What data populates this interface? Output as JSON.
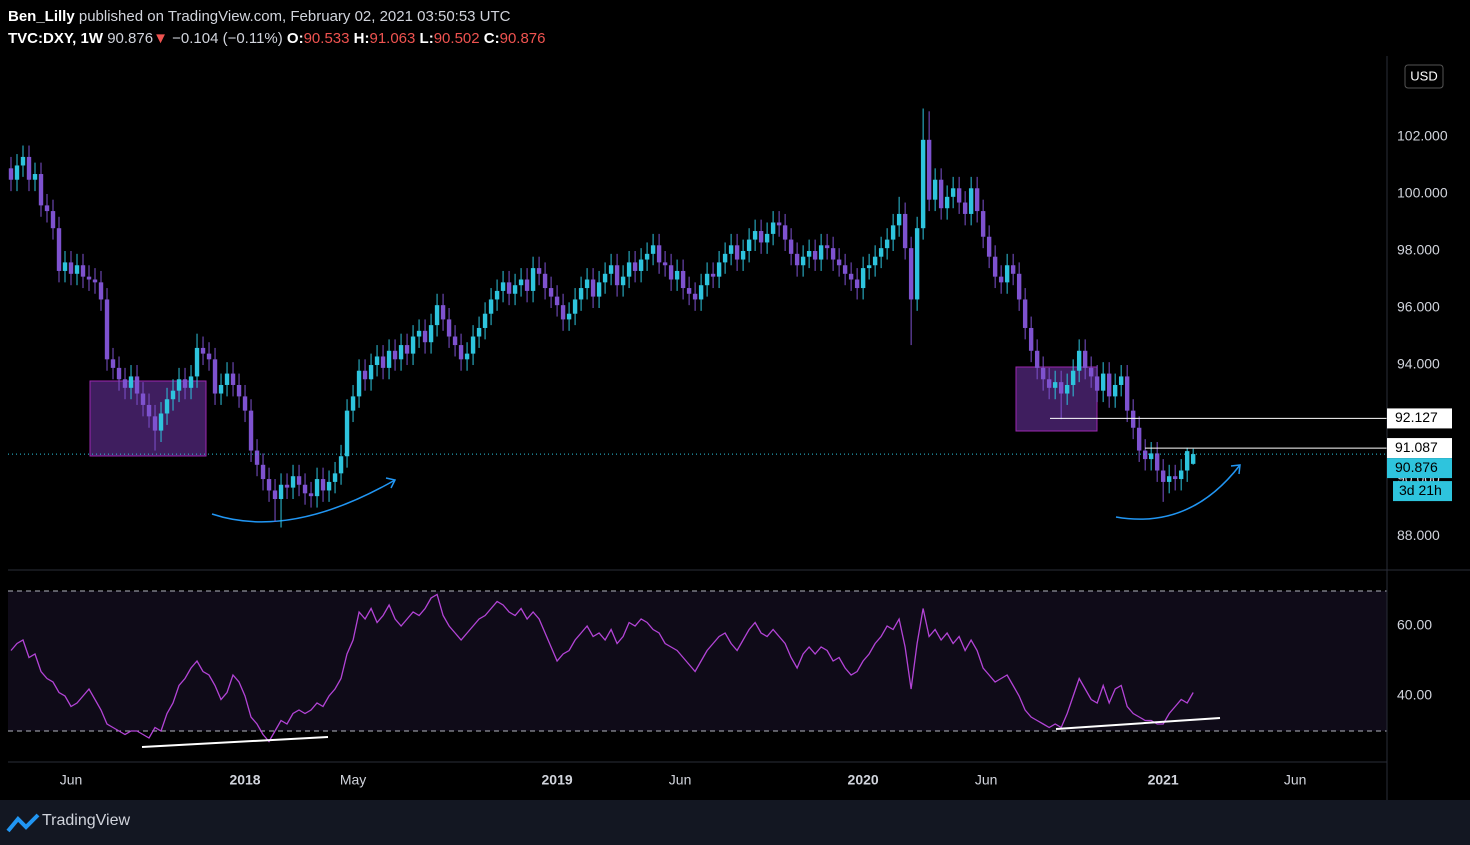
{
  "header": {
    "author": "Ben_Lilly",
    "published": "published on TradingView.com, February 02, 2021 03:50:53 UTC",
    "symbol": "TVC:DXY, 1W",
    "change": "−0.104",
    "change_pct": "(−0.11%)",
    "o_label": "O:",
    "h_label": "H:",
    "l_label": "L:",
    "c_label": "C:"
  },
  "chart_data": [
    {
      "type": "candlestick",
      "currency": "USD",
      "up_color": "#2ec4dd",
      "down_color": "#7e52cf",
      "open": [
        100.9,
        100.5,
        101.0,
        101.3,
        100.5,
        100.7,
        99.6,
        99.4,
        98.8,
        97.3,
        97.6,
        97.2,
        97.5,
        97.1,
        97.0,
        96.9,
        96.3,
        94.2,
        93.9,
        93.5,
        93.2,
        93.6,
        93.0,
        92.6,
        92.2,
        91.7,
        92.3,
        92.8,
        93.1,
        93.5,
        93.2,
        93.6,
        94.6,
        94.4,
        94.2,
        93.0,
        93.3,
        93.7,
        93.3,
        92.9,
        92.4,
        91.0,
        90.5,
        90.0,
        89.6,
        89.3,
        89.8,
        89.7,
        90.1,
        89.8,
        89.5,
        89.4,
        90.0,
        89.6,
        89.9,
        90.2,
        90.8,
        92.4,
        92.9,
        93.8,
        93.5,
        94.0,
        94.3,
        93.9,
        94.5,
        94.2,
        94.7,
        94.4,
        95.0,
        95.2,
        94.8,
        95.4,
        96.1,
        95.6,
        95.0,
        94.7,
        94.2,
        94.4,
        95.0,
        95.3,
        95.8,
        96.3,
        96.6,
        96.9,
        96.5,
        96.8,
        97.0,
        96.6,
        97.4,
        97.2,
        96.7,
        96.4,
        96.1,
        95.6,
        95.8,
        96.3,
        96.7,
        97.0,
        96.4,
        96.9,
        97.2,
        97.5,
        96.8,
        97.1,
        97.6,
        97.3,
        97.7,
        97.9,
        98.2,
        97.6,
        97.5,
        97.0,
        97.3,
        96.7,
        96.5,
        96.3,
        96.8,
        97.2,
        97.1,
        97.6,
        97.9,
        98.2,
        97.7,
        98.0,
        98.4,
        98.7,
        98.3,
        98.6,
        99.0,
        98.9,
        98.4,
        97.9,
        97.5,
        97.8,
        98.0,
        97.7,
        98.2,
        98.1,
        97.7,
        97.5,
        97.2,
        97.0,
        96.7,
        97.4,
        97.5,
        97.8,
        98.1,
        98.4,
        98.9,
        99.3,
        98.1,
        96.3,
        98.8,
        101.9,
        99.8,
        100.5,
        99.5,
        99.9,
        100.2,
        99.7,
        99.3,
        100.2,
        99.4,
        98.5,
        97.8,
        97.1,
        96.9,
        97.5,
        97.2,
        96.3,
        95.3,
        94.5,
        93.9,
        93.5,
        93.2,
        93.4,
        93.0,
        93.3,
        93.8,
        94.5,
        93.9,
        93.6,
        93.1,
        93.7,
        92.9,
        93.3,
        93.6,
        92.4,
        91.8,
        91.0,
        90.7,
        90.9,
        90.3,
        89.9,
        90.1,
        90.0,
        90.3,
        90.533
      ],
      "high": [
        101.3,
        101.4,
        101.7,
        101.7,
        101.1,
        101.1,
        100.0,
        99.8,
        99.2,
        98.0,
        98.0,
        97.9,
        97.9,
        97.5,
        97.4,
        97.3,
        96.7,
        94.6,
        94.3,
        93.9,
        94.0,
        94.0,
        93.4,
        93.0,
        92.6,
        92.7,
        93.2,
        93.5,
        93.9,
        93.9,
        94.0,
        95.1,
        95.0,
        94.8,
        94.6,
        93.7,
        94.1,
        94.1,
        93.7,
        93.3,
        92.8,
        91.4,
        90.9,
        90.4,
        90.0,
        90.2,
        90.2,
        90.5,
        90.5,
        90.2,
        89.9,
        90.4,
        90.4,
        90.3,
        90.6,
        91.2,
        92.8,
        93.3,
        94.2,
        94.2,
        94.4,
        94.7,
        94.7,
        94.9,
        94.9,
        95.1,
        95.1,
        95.4,
        95.6,
        95.6,
        95.8,
        96.5,
        96.5,
        96.0,
        95.4,
        95.1,
        94.8,
        95.4,
        95.7,
        96.2,
        96.7,
        97.0,
        97.3,
        97.3,
        97.2,
        97.4,
        97.4,
        97.8,
        97.8,
        97.6,
        97.1,
        96.8,
        96.5,
        96.2,
        96.7,
        97.1,
        97.4,
        97.4,
        97.3,
        97.6,
        97.9,
        97.9,
        97.5,
        98.0,
        98.0,
        98.1,
        98.3,
        98.6,
        98.6,
        98.0,
        97.9,
        97.7,
        97.7,
        97.1,
        96.9,
        97.2,
        97.6,
        97.6,
        98.0,
        98.3,
        98.6,
        98.6,
        98.4,
        98.8,
        99.1,
        99.1,
        99.0,
        99.4,
        99.4,
        99.3,
        98.8,
        98.3,
        98.2,
        98.4,
        98.4,
        98.6,
        98.6,
        98.5,
        98.1,
        97.9,
        97.6,
        97.4,
        97.8,
        97.9,
        98.2,
        98.5,
        98.8,
        99.3,
        99.9,
        99.7,
        98.5,
        99.2,
        103.0,
        102.9,
        100.9,
        100.9,
        100.3,
        100.6,
        100.6,
        100.1,
        100.6,
        100.6,
        99.8,
        98.9,
        98.2,
        97.5,
        97.9,
        97.9,
        97.6,
        96.7,
        95.7,
        94.9,
        94.3,
        93.9,
        93.8,
        93.8,
        93.7,
        94.2,
        94.9,
        94.9,
        94.3,
        94.0,
        94.1,
        94.1,
        93.7,
        94.0,
        94.0,
        92.8,
        92.2,
        91.4,
        91.3,
        91.3,
        90.7,
        90.5,
        90.5,
        90.7,
        91.1,
        91.063
      ],
      "low": [
        100.1,
        100.1,
        100.6,
        100.1,
        100.1,
        99.2,
        99.0,
        98.4,
        96.9,
        96.9,
        96.8,
        96.8,
        96.7,
        96.6,
        96.5,
        95.9,
        93.8,
        93.5,
        93.1,
        92.8,
        92.8,
        92.6,
        92.2,
        91.8,
        91.0,
        91.3,
        91.9,
        92.4,
        92.7,
        92.8,
        92.8,
        93.2,
        94.0,
        93.8,
        92.6,
        92.6,
        92.9,
        92.9,
        92.5,
        92.0,
        90.6,
        90.1,
        89.6,
        89.2,
        88.5,
        88.3,
        89.3,
        89.3,
        89.4,
        89.1,
        89.0,
        89.0,
        89.2,
        89.2,
        89.5,
        89.8,
        90.4,
        92.0,
        92.5,
        93.1,
        93.1,
        93.6,
        93.5,
        93.5,
        93.8,
        93.8,
        94.0,
        94.0,
        94.6,
        94.4,
        94.4,
        95.0,
        95.2,
        94.6,
        94.3,
        93.8,
        93.8,
        94.0,
        94.6,
        94.9,
        95.4,
        95.9,
        96.2,
        96.1,
        96.1,
        96.4,
        96.2,
        96.2,
        96.8,
        96.3,
        96.0,
        95.7,
        95.2,
        95.2,
        95.4,
        95.9,
        96.3,
        96.0,
        96.0,
        96.5,
        96.8,
        96.4,
        96.4,
        96.7,
        96.9,
        96.9,
        97.3,
        97.5,
        97.2,
        97.1,
        96.6,
        96.6,
        96.3,
        96.1,
        95.9,
        95.9,
        96.4,
        96.7,
        96.7,
        97.2,
        97.5,
        97.3,
        97.3,
        97.6,
        98.0,
        97.9,
        97.9,
        98.2,
        98.5,
        98.0,
        97.5,
        97.1,
        97.1,
        97.4,
        97.3,
        97.3,
        97.7,
        97.3,
        97.1,
        96.8,
        96.6,
        96.3,
        96.3,
        97.0,
        97.1,
        97.4,
        97.7,
        98.0,
        98.5,
        97.7,
        94.7,
        95.9,
        98.4,
        99.4,
        99.4,
        99.1,
        99.1,
        99.5,
        99.3,
        98.9,
        98.9,
        99.0,
        98.1,
        97.4,
        96.7,
        96.5,
        96.5,
        96.8,
        95.9,
        94.9,
        94.1,
        93.5,
        93.1,
        92.8,
        92.8,
        92.1,
        92.6,
        92.9,
        93.4,
        93.5,
        93.2,
        92.7,
        92.7,
        92.5,
        92.5,
        92.9,
        92.0,
        91.4,
        90.6,
        90.3,
        90.3,
        89.9,
        89.2,
        89.5,
        89.6,
        89.6,
        89.9,
        90.502
      ],
      "close": [
        100.5,
        101.0,
        101.3,
        100.5,
        100.7,
        99.6,
        99.4,
        98.8,
        97.3,
        97.6,
        97.2,
        97.5,
        97.1,
        97.0,
        96.9,
        96.3,
        94.2,
        93.9,
        93.5,
        93.2,
        93.6,
        93.0,
        92.6,
        92.2,
        91.7,
        92.3,
        92.8,
        93.1,
        93.5,
        93.2,
        93.6,
        94.6,
        94.4,
        94.2,
        93.0,
        93.3,
        93.7,
        93.3,
        92.9,
        92.4,
        91.0,
        90.5,
        90.0,
        89.6,
        89.3,
        89.8,
        89.7,
        90.1,
        89.8,
        89.5,
        89.4,
        90.0,
        89.6,
        89.9,
        90.2,
        90.8,
        92.4,
        92.9,
        93.8,
        93.5,
        94.0,
        94.3,
        93.9,
        94.5,
        94.2,
        94.7,
        94.4,
        95.0,
        95.2,
        94.8,
        95.4,
        96.1,
        95.6,
        95.0,
        94.7,
        94.2,
        94.4,
        95.0,
        95.3,
        95.8,
        96.3,
        96.6,
        96.9,
        96.5,
        96.8,
        97.0,
        96.6,
        97.4,
        97.2,
        96.7,
        96.4,
        96.1,
        95.6,
        95.8,
        96.3,
        96.7,
        97.0,
        96.4,
        96.9,
        97.2,
        97.5,
        96.8,
        97.1,
        97.6,
        97.3,
        97.7,
        97.9,
        98.2,
        97.6,
        97.5,
        97.0,
        97.3,
        96.7,
        96.5,
        96.3,
        96.8,
        97.2,
        97.1,
        97.6,
        97.9,
        98.2,
        97.7,
        98.0,
        98.4,
        98.7,
        98.3,
        98.6,
        99.0,
        98.9,
        98.4,
        97.9,
        97.5,
        97.8,
        98.0,
        97.7,
        98.2,
        98.1,
        97.7,
        97.5,
        97.2,
        97.0,
        96.7,
        97.4,
        97.5,
        97.8,
        98.1,
        98.4,
        98.9,
        99.3,
        98.1,
        96.3,
        98.8,
        101.9,
        99.8,
        100.5,
        99.5,
        99.9,
        100.2,
        99.7,
        99.3,
        100.2,
        99.4,
        98.5,
        97.8,
        97.1,
        96.9,
        97.5,
        97.2,
        96.3,
        95.3,
        94.5,
        93.9,
        93.5,
        93.2,
        93.4,
        93.0,
        93.3,
        93.8,
        94.5,
        93.9,
        93.6,
        93.1,
        93.7,
        92.9,
        93.3,
        93.6,
        92.4,
        91.8,
        91.0,
        90.7,
        90.9,
        90.3,
        89.9,
        90.1,
        90.0,
        90.3,
        90.98,
        90.876
      ],
      "countdown": "3d 21h",
      "levels": [
        92.127,
        91.087
      ],
      "xlim": [
        -0.5,
        229.3
      ],
      "xticks": [
        {
          "value": 10,
          "label": "Jun"
        },
        {
          "value": 39,
          "label": "2018"
        },
        {
          "value": 57,
          "label": "May"
        },
        {
          "value": 91,
          "label": "2019"
        },
        {
          "value": 111.5,
          "label": "Jun"
        },
        {
          "value": 142,
          "label": "2020"
        },
        {
          "value": 162.5,
          "label": "Jun"
        },
        {
          "value": 192,
          "label": "2021"
        },
        {
          "value": 214,
          "label": "Jun"
        }
      ],
      "ylim": [
        86.81,
        104.84
      ],
      "yticks": [
        {
          "value": 88,
          "label": "88.000"
        },
        {
          "value": 90,
          "label": "90.000"
        },
        {
          "value": 92,
          "label": "92.000"
        },
        {
          "value": 94,
          "label": "94.000"
        },
        {
          "value": 96,
          "label": "96.000"
        },
        {
          "value": 98,
          "label": "98.000"
        },
        {
          "value": 100,
          "label": "100.000"
        },
        {
          "value": 102,
          "label": "102.000"
        }
      ]
    },
    {
      "type": "line",
      "color": "#b344d6",
      "values": [
        53,
        55,
        56,
        51,
        52,
        47,
        45,
        44,
        41,
        40,
        37,
        38,
        40,
        42,
        39,
        36,
        32,
        31,
        30,
        29,
        30,
        30,
        29,
        28,
        31,
        30,
        35,
        38,
        43,
        45,
        48,
        50,
        47,
        46,
        43,
        39,
        41,
        46,
        44,
        40,
        34,
        32,
        29,
        27,
        30,
        33,
        32,
        35,
        36,
        35,
        36,
        38,
        37,
        40,
        42,
        45,
        52,
        56,
        64,
        62,
        65,
        61,
        63,
        66,
        62,
        60,
        62,
        64,
        63,
        65,
        68,
        69,
        63,
        60,
        58,
        56,
        58,
        60,
        62,
        63,
        65,
        67,
        66,
        64,
        63,
        65,
        62,
        64,
        62,
        58,
        54,
        50,
        52,
        53,
        56,
        58,
        60,
        57,
        58,
        56,
        59,
        55,
        57,
        61,
        60,
        62,
        61,
        59,
        58,
        55,
        54,
        53,
        51,
        49,
        47,
        50,
        53,
        55,
        57,
        58,
        55,
        53,
        56,
        59,
        61,
        58,
        57,
        59,
        57,
        55,
        51,
        48,
        52,
        54,
        52,
        54,
        53,
        50,
        51,
        48,
        46,
        47,
        50,
        52,
        55,
        57,
        60,
        59,
        62,
        54,
        42,
        55,
        65,
        57,
        59,
        56,
        58,
        55,
        57,
        53,
        56,
        53,
        48,
        46,
        44,
        45,
        46,
        43,
        40,
        36,
        34,
        33,
        32,
        31,
        32,
        31,
        35,
        40,
        45,
        42,
        39,
        38,
        43,
        38,
        42,
        43,
        37,
        35,
        34,
        33,
        33,
        32,
        32,
        35,
        37,
        39,
        38,
        41
      ],
      "ylim": [
        21.14,
        76
      ],
      "band_lines": [
        30,
        70
      ],
      "yticks": [
        {
          "value": 40,
          "label": "40.00"
        },
        {
          "value": 60,
          "label": "60.00"
        }
      ]
    }
  ],
  "footer": {
    "brand": "TradingView"
  }
}
